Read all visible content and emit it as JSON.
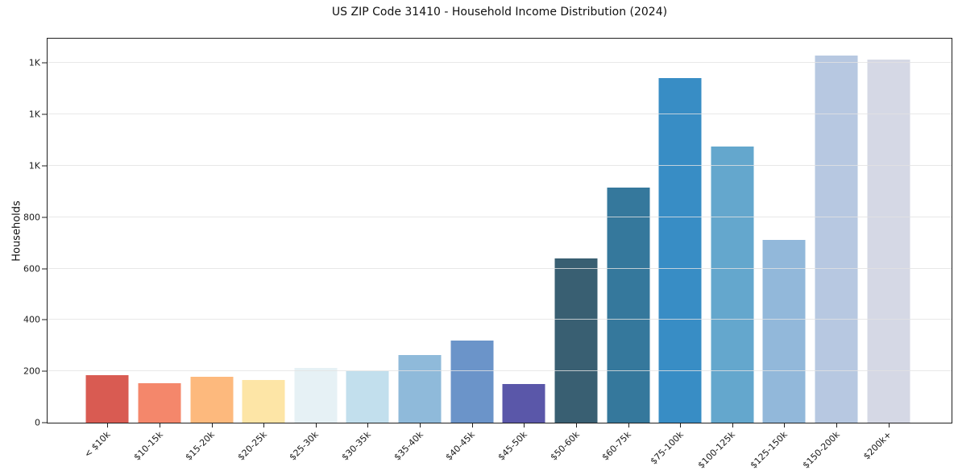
{
  "chart_data": {
    "type": "bar",
    "title": "US ZIP Code 31410 - Household Income Distribution (2024)",
    "xlabel": "",
    "ylabel": "Households",
    "categories": [
      "< $10k",
      "$10-15k",
      "$15-20k",
      "$20-25k",
      "$25-30k",
      "$30-35k",
      "$35-40k",
      "$40-45k",
      "$45-50k",
      "$50-60k",
      "$60-75k",
      "$75-100k",
      "$100-125k",
      "$125-150k",
      "$150-200k",
      "$200k+"
    ],
    "values": [
      185,
      155,
      180,
      165,
      213,
      200,
      262,
      320,
      150,
      640,
      915,
      1340,
      1075,
      710,
      1430,
      1415
    ],
    "bar_colors": [
      "#d95b52",
      "#f4876b",
      "#fdb97d",
      "#fde5a6",
      "#e6f1f5",
      "#c2dfed",
      "#8fbada",
      "#6b94c9",
      "#5a57a9",
      "#395f72",
      "#35789c",
      "#388dc5",
      "#64a7cd",
      "#92b8da",
      "#b7c8e1",
      "#d5d8e5"
    ],
    "ylim": [
      0,
      1495
    ],
    "yticks": [
      {
        "value": 0,
        "label": "0"
      },
      {
        "value": 200,
        "label": "200"
      },
      {
        "value": 400,
        "label": "400"
      },
      {
        "value": 600,
        "label": "600"
      },
      {
        "value": 800,
        "label": "800"
      },
      {
        "value": 1000,
        "label": "1K"
      },
      {
        "value": 1200,
        "label": "1K"
      },
      {
        "value": 1400,
        "label": "1K"
      }
    ],
    "grid": "horizontal-only, drawn over bars",
    "legend_position": "none",
    "background_color": "#ffffff",
    "axis_color": "#1f1f1f",
    "grid_color": "#e2e2e2"
  }
}
